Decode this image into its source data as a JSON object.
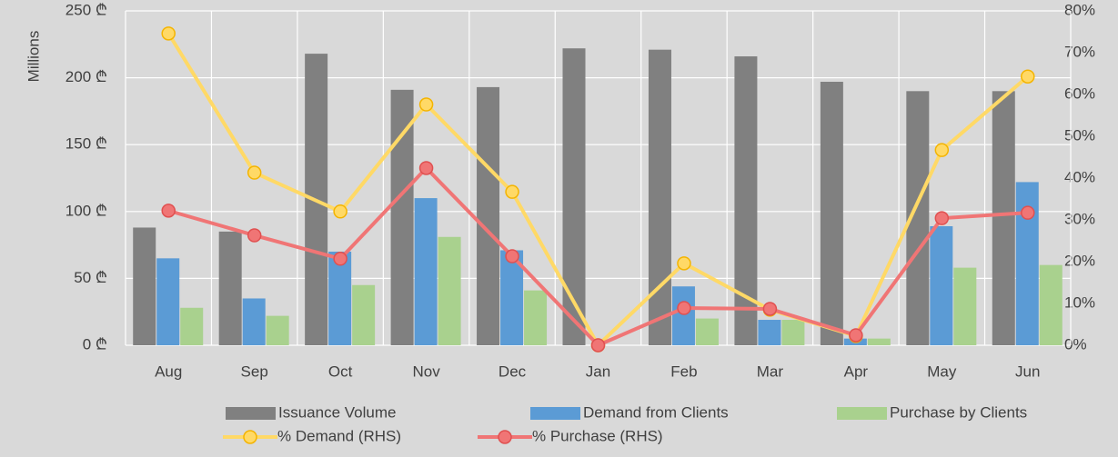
{
  "chart_data": {
    "type": "bar",
    "y_label": "Millions",
    "categories": [
      "Aug",
      "Sep",
      "Oct",
      "Nov",
      "Dec",
      "Jan",
      "Feb",
      "Mar",
      "Apr",
      "May",
      "Jun"
    ],
    "series": [
      {
        "name": "Issuance Volume",
        "type": "bar",
        "color": "#808080",
        "values": [
          88,
          85,
          218,
          191,
          193,
          222,
          221,
          216,
          197,
          190,
          190
        ]
      },
      {
        "name": "Demand from Clients",
        "type": "bar",
        "color": "#5b9bd5",
        "values": [
          65,
          35,
          70,
          110,
          71,
          0,
          44,
          19,
          5,
          89,
          122
        ]
      },
      {
        "name": "Purchase by Clients",
        "type": "bar",
        "color": "#a9d18e",
        "values": [
          28,
          22,
          45,
          81,
          41,
          0,
          20,
          19,
          5,
          58,
          60
        ]
      },
      {
        "name": "% Demand (RHS)",
        "type": "line",
        "axis": "y2",
        "color": "#ffd966",
        "values": [
          74.6,
          41.3,
          32,
          57.6,
          36.7,
          0,
          19.6,
          8.5,
          2.2,
          46.7,
          64.3
        ]
      },
      {
        "name": "% Purchase (RHS)",
        "type": "line",
        "axis": "y2",
        "color": "#f07575",
        "values": [
          32.2,
          26.3,
          20.7,
          42.4,
          21.3,
          0,
          8.9,
          8.7,
          2.4,
          30.4,
          31.7
        ]
      }
    ],
    "ylim": [
      0,
      250
    ],
    "yticks": [
      {
        "value": 0,
        "label": "0 ₾"
      },
      {
        "value": 50,
        "label": "50 ₾"
      },
      {
        "value": 100,
        "label": "100 ₾"
      },
      {
        "value": 150,
        "label": "150 ₾"
      },
      {
        "value": 200,
        "label": "200 ₾"
      },
      {
        "value": 250,
        "label": "250 ₾"
      }
    ],
    "y2lim": [
      0,
      80
    ],
    "y2ticks": [
      {
        "value": 0,
        "label": "0%"
      },
      {
        "value": 10,
        "label": "10%"
      },
      {
        "value": 20,
        "label": "20%"
      },
      {
        "value": 30,
        "label": "30%"
      },
      {
        "value": 40,
        "label": "40%"
      },
      {
        "value": 50,
        "label": "50%"
      },
      {
        "value": 60,
        "label": "60%"
      },
      {
        "value": 70,
        "label": "70%"
      },
      {
        "value": 80,
        "label": "80%"
      }
    ],
    "grid": true
  }
}
